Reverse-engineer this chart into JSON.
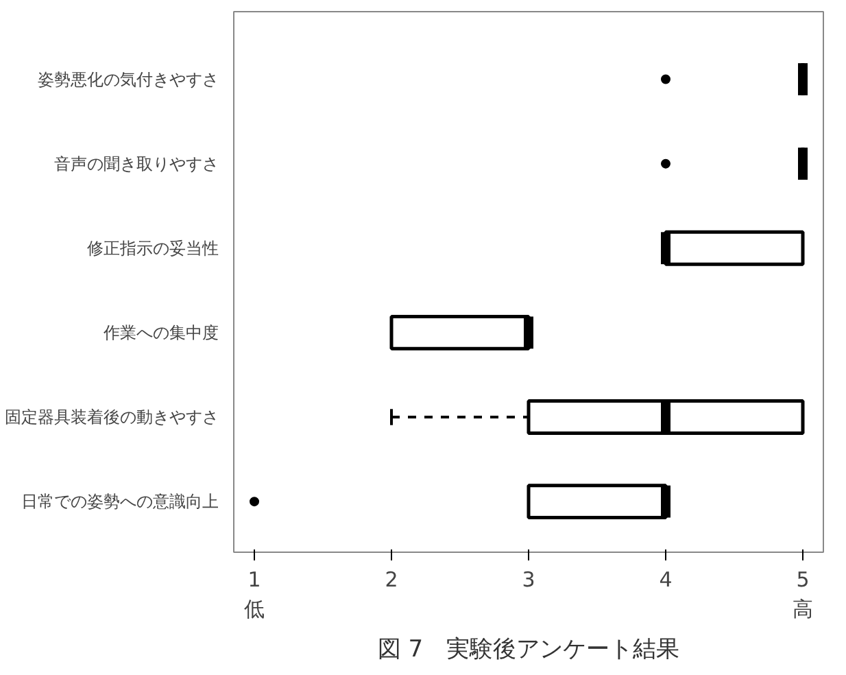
{
  "chart_data": {
    "type": "box",
    "orientation": "horizontal",
    "categories": [
      "姿勢悪化の気付きやすさ",
      "音声の聞き取りやすさ",
      "修正指示の妥当性",
      "作業への集中度",
      "固定器具装着後の動きやすさ",
      "日常での姿勢への意識向上"
    ],
    "boxes": [
      {
        "low": 5,
        "q1": 5,
        "median": 5,
        "q3": 5,
        "high": 5,
        "outliers": [
          4
        ]
      },
      {
        "low": 5,
        "q1": 5,
        "median": 5,
        "q3": 5,
        "high": 5,
        "outliers": [
          4
        ]
      },
      {
        "low": 4,
        "q1": 4,
        "median": 4,
        "q3": 5,
        "high": 5
      },
      {
        "low": 2,
        "q1": 2,
        "median": 3,
        "q3": 3,
        "high": 3
      },
      {
        "low": 2,
        "q1": 3,
        "median": 4,
        "q3": 5,
        "high": 5
      },
      {
        "low": 3,
        "q1": 3,
        "median": 4,
        "q3": 4,
        "high": 4,
        "outliers": [
          1
        ]
      }
    ],
    "xlim": [
      0.85,
      5.15
    ],
    "xticks": [
      {
        "value": 1,
        "label": "1\n低"
      },
      2,
      3,
      4,
      {
        "value": 5,
        "label": "5\n高"
      }
    ],
    "grid": false,
    "annotations": [
      "図 7　実験後アンケート結果"
    ]
  }
}
